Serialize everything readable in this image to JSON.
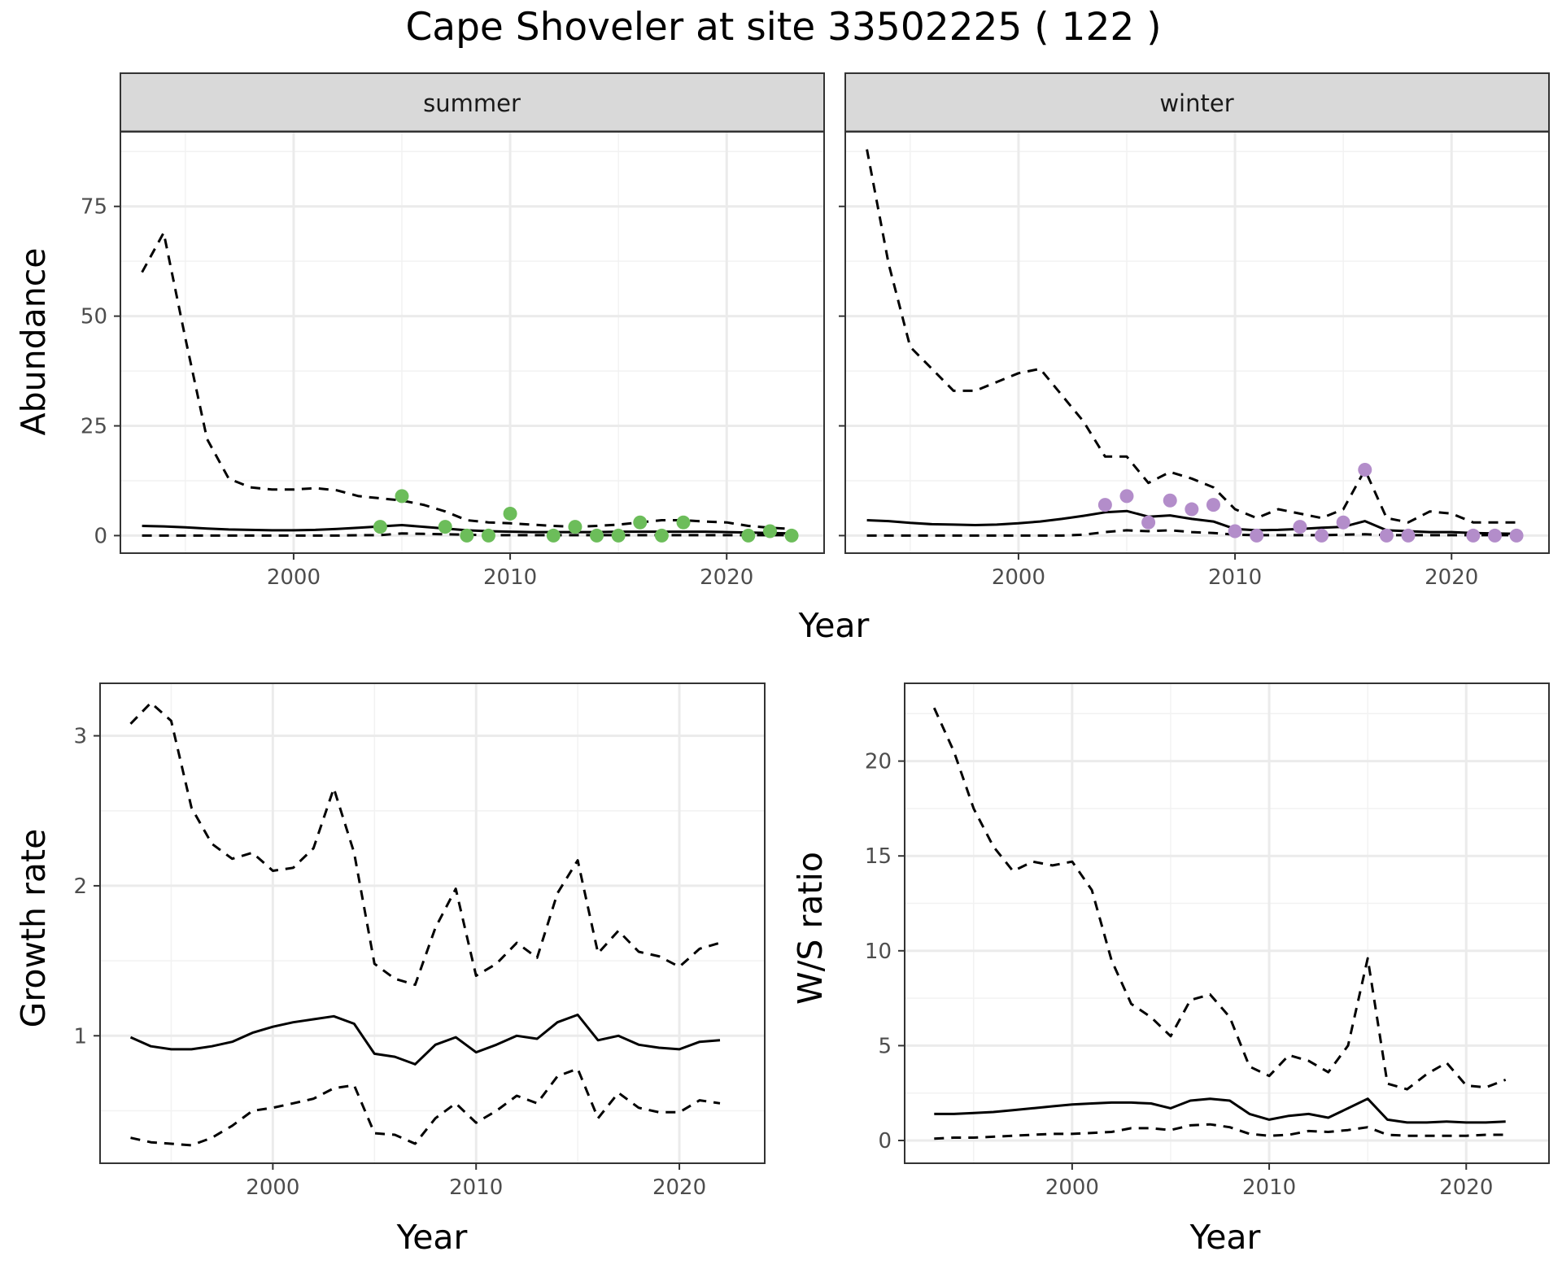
{
  "title": "Cape Shoveler at site 33502225 ( 122 )",
  "colors": {
    "summer_points": "#6cbd5a",
    "winter_points": "#b38dca",
    "line": "#000000",
    "grid_major": "#ebebeb",
    "strip_bg": "#d9d9d9"
  },
  "chart_data": [
    {
      "type": "line",
      "facet": "summer",
      "xlabel": "Year",
      "ylabel": "Abundance",
      "xlim": [
        1992,
        2024.5
      ],
      "ylim": [
        -4,
        92
      ],
      "x_ticks": [
        2000,
        2010,
        2020
      ],
      "y_ticks": [
        0,
        25,
        50,
        75
      ],
      "grid": true,
      "years": [
        1993,
        1994,
        1995,
        1996,
        1997,
        1998,
        1999,
        2000,
        2001,
        2002,
        2003,
        2004,
        2005,
        2006,
        2007,
        2008,
        2009,
        2010,
        2011,
        2012,
        2013,
        2014,
        2015,
        2016,
        2017,
        2018,
        2019,
        2020,
        2021,
        2022,
        2023
      ],
      "series": [
        {
          "style": "solid",
          "values": [
            2.2,
            2.1,
            1.9,
            1.6,
            1.4,
            1.3,
            1.2,
            1.2,
            1.3,
            1.5,
            1.8,
            2.1,
            2.4,
            2.0,
            1.6,
            1.2,
            1.0,
            0.9,
            0.8,
            0.8,
            0.8,
            0.8,
            0.9,
            0.9,
            0.9,
            0.9,
            0.9,
            0.8,
            0.7,
            0.6,
            0.5
          ]
        },
        {
          "style": "dashed",
          "values": [
            60,
            69,
            45,
            22,
            13,
            11,
            10.5,
            10.5,
            10.8,
            10.3,
            9,
            8.5,
            8,
            7,
            5.5,
            3.5,
            3,
            2.8,
            2.5,
            2.2,
            2.0,
            2.2,
            2.5,
            3.0,
            3.5,
            3.5,
            3.2,
            3.0,
            2.2,
            1.8,
            1.5
          ]
        },
        {
          "style": "dashed",
          "values": [
            0,
            0,
            0,
            0,
            0,
            0,
            0,
            0,
            0,
            0,
            0.1,
            0.1,
            0.5,
            0.4,
            0.3,
            0.2,
            0.1,
            0.1,
            0.1,
            0.1,
            0.1,
            0.1,
            0.1,
            0.1,
            0.1,
            0.1,
            0.1,
            0.1,
            0.1,
            0.1,
            0.1
          ]
        }
      ],
      "points": [
        {
          "x": 2004,
          "y": 2
        },
        {
          "x": 2005,
          "y": 9
        },
        {
          "x": 2007,
          "y": 2
        },
        {
          "x": 2008,
          "y": 0
        },
        {
          "x": 2009,
          "y": 0
        },
        {
          "x": 2010,
          "y": 5
        },
        {
          "x": 2012,
          "y": 0
        },
        {
          "x": 2013,
          "y": 2
        },
        {
          "x": 2014,
          "y": 0
        },
        {
          "x": 2015,
          "y": 0
        },
        {
          "x": 2016,
          "y": 3
        },
        {
          "x": 2017,
          "y": 0
        },
        {
          "x": 2018,
          "y": 3
        },
        {
          "x": 2021,
          "y": 0
        },
        {
          "x": 2022,
          "y": 1
        },
        {
          "x": 2023,
          "y": 0
        }
      ]
    },
    {
      "type": "line",
      "facet": "winter",
      "xlabel": "Year",
      "ylabel": "Abundance",
      "xlim": [
        1992,
        2024.5
      ],
      "ylim": [
        -4,
        92
      ],
      "x_ticks": [
        2000,
        2010,
        2020
      ],
      "y_ticks": [
        0,
        25,
        50,
        75
      ],
      "grid": true,
      "years": [
        1993,
        1994,
        1995,
        1996,
        1997,
        1998,
        1999,
        2000,
        2001,
        2002,
        2003,
        2004,
        2005,
        2006,
        2007,
        2008,
        2009,
        2010,
        2011,
        2012,
        2013,
        2014,
        2015,
        2016,
        2017,
        2018,
        2019,
        2020,
        2021,
        2022,
        2023
      ],
      "series": [
        {
          "style": "solid",
          "values": [
            3.5,
            3.3,
            2.9,
            2.6,
            2.5,
            2.4,
            2.5,
            2.8,
            3.2,
            3.8,
            4.5,
            5.3,
            5.6,
            4.3,
            4.6,
            3.8,
            3.2,
            1.5,
            1.2,
            1.3,
            1.5,
            1.8,
            2.0,
            3.3,
            1.2,
            1.0,
            0.8,
            0.8,
            0.6,
            0.5,
            0.4
          ]
        },
        {
          "style": "dashed",
          "values": [
            88,
            62,
            43,
            38,
            33,
            33,
            35,
            37,
            38,
            32,
            26,
            18,
            18,
            12,
            14.5,
            13,
            11,
            6,
            4,
            6,
            5,
            4,
            6,
            15,
            4,
            3,
            5.5,
            5,
            3,
            3,
            3
          ]
        },
        {
          "style": "dashed",
          "values": [
            0,
            0,
            0,
            0,
            0,
            0,
            0,
            0,
            0,
            0,
            0.2,
            0.8,
            1.2,
            1.0,
            1.2,
            0.8,
            0.6,
            0.2,
            0.1,
            0.1,
            0.1,
            0.1,
            0.2,
            0.3,
            0.1,
            0.1,
            0.1,
            0.1,
            0.1,
            0.1,
            0.1
          ]
        }
      ],
      "points": [
        {
          "x": 2004,
          "y": 7
        },
        {
          "x": 2005,
          "y": 9
        },
        {
          "x": 2006,
          "y": 3
        },
        {
          "x": 2007,
          "y": 8
        },
        {
          "x": 2008,
          "y": 6
        },
        {
          "x": 2009,
          "y": 7
        },
        {
          "x": 2010,
          "y": 1
        },
        {
          "x": 2011,
          "y": 0
        },
        {
          "x": 2013,
          "y": 2
        },
        {
          "x": 2014,
          "y": 0
        },
        {
          "x": 2015,
          "y": 3
        },
        {
          "x": 2016,
          "y": 15
        },
        {
          "x": 2017,
          "y": 0
        },
        {
          "x": 2018,
          "y": 0
        },
        {
          "x": 2021,
          "y": 0
        },
        {
          "x": 2022,
          "y": 0
        },
        {
          "x": 2023,
          "y": 0
        }
      ]
    },
    {
      "type": "line",
      "xlabel": "Year",
      "ylabel": "Growth rate",
      "xlim": [
        1991.5,
        2024.2
      ],
      "ylim": [
        0.15,
        3.35
      ],
      "x_ticks": [
        2000,
        2010,
        2020
      ],
      "y_ticks": [
        1,
        2,
        3
      ],
      "grid": true,
      "years": [
        1993,
        1994,
        1995,
        1996,
        1997,
        1998,
        1999,
        2000,
        2001,
        2002,
        2003,
        2004,
        2005,
        2006,
        2007,
        2008,
        2009,
        2010,
        2011,
        2012,
        2013,
        2014,
        2015,
        2016,
        2017,
        2018,
        2019,
        2020,
        2021,
        2022
      ],
      "series": [
        {
          "style": "solid",
          "values": [
            0.99,
            0.93,
            0.91,
            0.91,
            0.93,
            0.96,
            1.02,
            1.06,
            1.09,
            1.11,
            1.13,
            1.08,
            0.88,
            0.86,
            0.81,
            0.94,
            0.99,
            0.89,
            0.94,
            1.0,
            0.98,
            1.09,
            1.14,
            0.97,
            1.0,
            0.94,
            0.92,
            0.91,
            0.96,
            0.97
          ]
        },
        {
          "style": "dashed",
          "values": [
            3.08,
            3.22,
            3.1,
            2.52,
            2.28,
            2.18,
            2.22,
            2.1,
            2.12,
            2.25,
            2.65,
            2.22,
            1.48,
            1.38,
            1.34,
            1.72,
            1.98,
            1.4,
            1.48,
            1.62,
            1.52,
            1.95,
            2.17,
            1.55,
            1.7,
            1.56,
            1.53,
            1.46,
            1.58,
            1.62
          ]
        },
        {
          "style": "dashed",
          "values": [
            0.32,
            0.29,
            0.28,
            0.27,
            0.32,
            0.4,
            0.5,
            0.52,
            0.55,
            0.58,
            0.65,
            0.67,
            0.35,
            0.34,
            0.28,
            0.45,
            0.55,
            0.42,
            0.5,
            0.6,
            0.55,
            0.73,
            0.78,
            0.45,
            0.62,
            0.52,
            0.49,
            0.49,
            0.57,
            0.55
          ]
        }
      ]
    },
    {
      "type": "line",
      "xlabel": "Year",
      "ylabel": "W/S ratio",
      "xlim": [
        1991.5,
        2024.2
      ],
      "ylim": [
        -1.2,
        24.1
      ],
      "x_ticks": [
        2000,
        2010,
        2020
      ],
      "y_ticks": [
        0,
        5,
        10,
        15,
        20
      ],
      "grid": true,
      "years": [
        1993,
        1994,
        1995,
        1996,
        1997,
        1998,
        1999,
        2000,
        2001,
        2002,
        2003,
        2004,
        2005,
        2006,
        2007,
        2008,
        2009,
        2010,
        2011,
        2012,
        2013,
        2014,
        2015,
        2016,
        2017,
        2018,
        2019,
        2020,
        2021,
        2022
      ],
      "series": [
        {
          "style": "solid",
          "values": [
            1.4,
            1.4,
            1.45,
            1.5,
            1.6,
            1.7,
            1.8,
            1.9,
            1.95,
            2.0,
            2.0,
            1.95,
            1.7,
            2.1,
            2.2,
            2.1,
            1.4,
            1.1,
            1.3,
            1.4,
            1.2,
            1.7,
            2.2,
            1.1,
            0.95,
            0.95,
            1.0,
            0.95,
            0.95,
            1.0
          ]
        },
        {
          "style": "dashed",
          "values": [
            22.8,
            20.5,
            17.5,
            15.5,
            14.2,
            14.7,
            14.5,
            14.7,
            13.2,
            9.5,
            7.2,
            6.5,
            5.5,
            7.4,
            7.7,
            6.5,
            3.9,
            3.4,
            4.5,
            4.2,
            3.6,
            5.0,
            9.6,
            3.0,
            2.7,
            3.5,
            4.1,
            2.9,
            2.8,
            3.2
          ]
        },
        {
          "style": "dashed",
          "values": [
            0.1,
            0.15,
            0.15,
            0.2,
            0.25,
            0.3,
            0.35,
            0.35,
            0.4,
            0.45,
            0.65,
            0.65,
            0.55,
            0.8,
            0.85,
            0.7,
            0.35,
            0.25,
            0.3,
            0.5,
            0.45,
            0.55,
            0.7,
            0.3,
            0.25,
            0.25,
            0.25,
            0.25,
            0.3,
            0.3
          ]
        }
      ]
    }
  ],
  "panels": {
    "summer": {
      "strip": "summer"
    },
    "winter": {
      "strip": "winter"
    },
    "top_xlabel": "Year",
    "top_ylabel": "Abundance",
    "growth": {
      "xlabel": "Year",
      "ylabel": "Growth rate"
    },
    "ws": {
      "xlabel": "Year",
      "ylabel": "W/S ratio"
    }
  }
}
